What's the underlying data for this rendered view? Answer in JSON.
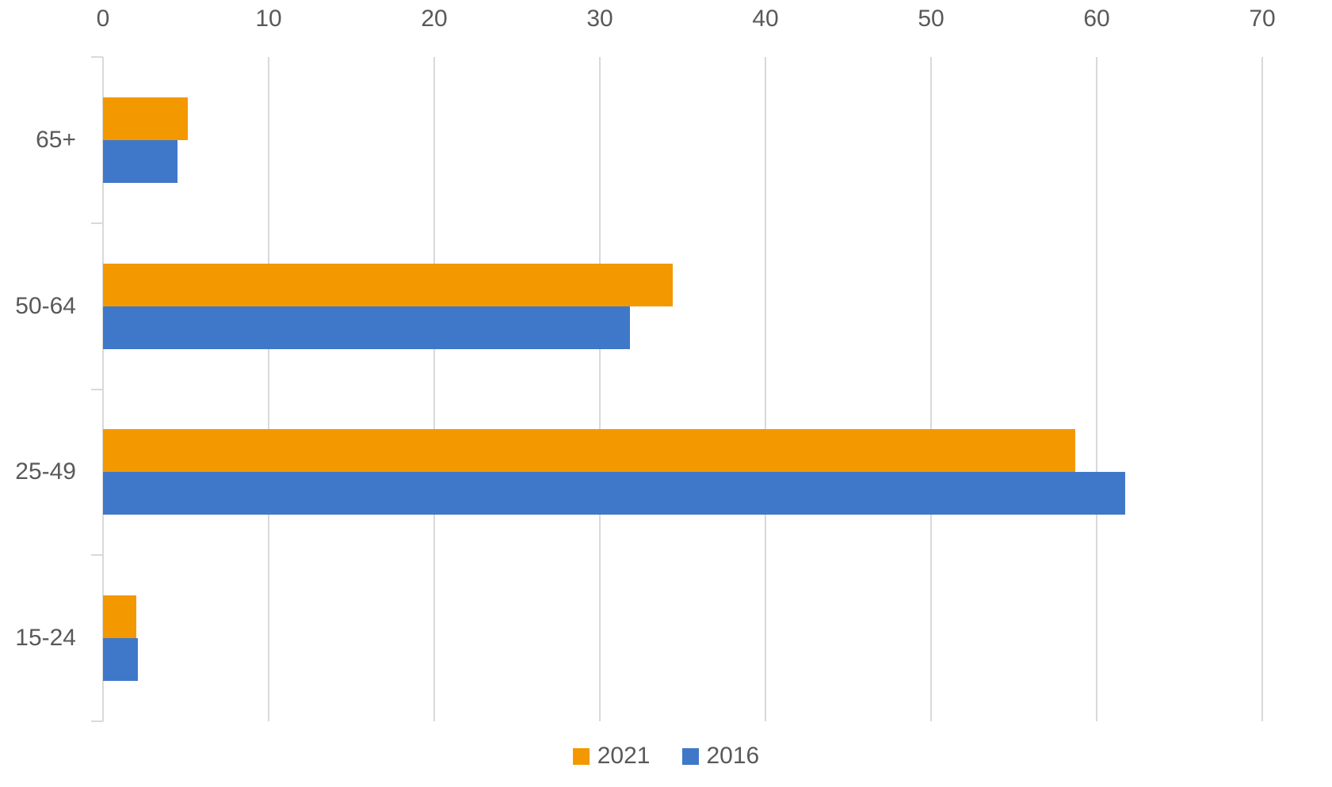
{
  "chart_data": {
    "type": "bar",
    "orientation": "horizontal",
    "title": "",
    "categories": [
      "65+",
      "50-64",
      "25-49",
      "15-24"
    ],
    "series": [
      {
        "name": "2021",
        "color": "#F49800",
        "values": [
          5.1,
          34.4,
          58.7,
          2.0
        ]
      },
      {
        "name": "2016",
        "color": "#3F78C8",
        "values": [
          4.5,
          31.8,
          61.7,
          2.1
        ]
      }
    ],
    "x_axis": {
      "min": 0,
      "max": 70,
      "tick_interval": 10,
      "ticks": [
        0,
        10,
        20,
        30,
        40,
        50,
        60,
        70
      ],
      "labels_position": "top"
    },
    "grid": "vertical-major",
    "legend": {
      "position": "bottom-center"
    },
    "colors": {
      "gridline": "#D9D9D9",
      "axis_line": "#D9D9D9",
      "axis_text": "#595959",
      "background": "#FFFFFF"
    }
  }
}
